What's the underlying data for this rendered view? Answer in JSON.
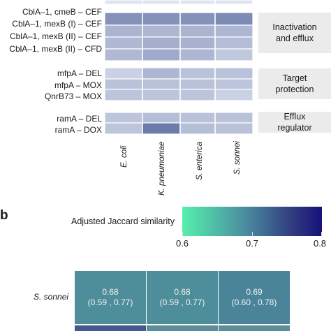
{
  "chart_data": [
    {
      "type": "heatmap",
      "columns": [
        "E. coli",
        "K. pneumoniae",
        "S. enterica",
        "S. sonnei"
      ],
      "groups": [
        {
          "category": "Inactivation\nand efflux",
          "rows": [
            {
              "label": "CblA–1, cmeB – CEF",
              "values": [
                0.55,
                0.55,
                0.55,
                0.6
              ]
            },
            {
              "label": "CblA–1, mexB (I) – CEF",
              "values": [
                0.32,
                0.3,
                0.32,
                0.3
              ]
            },
            {
              "label": "CblA–1, mexB (II) – CEF",
              "values": [
                0.28,
                0.35,
                0.33,
                0.25
              ]
            },
            {
              "label": "CblA–1, mexB (II) – CFD",
              "values": [
                0.28,
                0.38,
                0.3,
                0.18
              ]
            }
          ]
        },
        {
          "category": "Target\nprotection",
          "rows": [
            {
              "label": "mfpA – DEL",
              "values": [
                0.12,
                0.3,
                0.22,
                0.22
              ]
            },
            {
              "label": "mfpA – MOX",
              "values": [
                0.22,
                0.22,
                0.22,
                0.2
              ]
            },
            {
              "label": "QnrB73 – MOX",
              "values": [
                0.2,
                0.2,
                0.2,
                0.12
              ]
            }
          ]
        },
        {
          "category": "Efflux\nregulator",
          "rows": [
            {
              "label": "ramA – DEL",
              "values": [
                0.2,
                0.25,
                0.22,
                0.22
              ]
            },
            {
              "label": "ramA – DOX",
              "values": [
                0.2,
                0.7,
                0.25,
                0.22
              ]
            }
          ]
        }
      ]
    },
    {
      "type": "heatmap",
      "panel_label": "b",
      "colorbar": {
        "title": "Adjusted Jaccard similarity",
        "min": 0.6,
        "max": 0.8,
        "tick_labels": [
          "0.6",
          "0.7",
          "0.8"
        ]
      },
      "row_label": "S. sonnei",
      "cells": [
        {
          "value": 0.68,
          "ci_text": "(0.59 , 0.77)",
          "value_text": "0.68"
        },
        {
          "value": 0.68,
          "ci_text": "(0.59 , 0.77)",
          "value_text": "0.68"
        },
        {
          "value": 0.69,
          "ci_text": "(0.60 , 0.78)",
          "value_text": "0.69"
        }
      ]
    }
  ]
}
